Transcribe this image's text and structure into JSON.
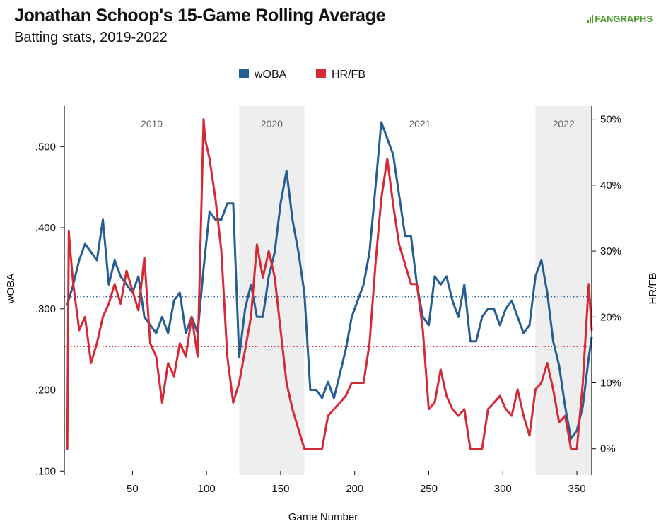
{
  "header": {
    "title": "Jonathan Schoop's 15-Game Rolling Average",
    "subtitle": "Batting stats, 2019-2022",
    "logo_text": "FANGRAPHS"
  },
  "colors": {
    "woba": "#265d93",
    "hrfb": "#d42a35",
    "season_shade": "#eeeeee",
    "logo": "#4a9a2c"
  },
  "chart_data": {
    "type": "line",
    "xlabel": "Game Number",
    "ylabel_left": "wOBA",
    "ylabel_right": "HR/FB",
    "xlim": [
      4,
      360
    ],
    "ylim_left": [
      0.095,
      0.55
    ],
    "ylim_right": [
      -0.04,
      0.52
    ],
    "x_ticks": [
      50,
      100,
      150,
      200,
      250,
      300,
      350
    ],
    "y_left_ticks": [
      ".100",
      ".200",
      ".300",
      ".400",
      ".500"
    ],
    "y_left_tick_values": [
      0.1,
      0.2,
      0.3,
      0.4,
      0.5
    ],
    "y_right_ticks": [
      "0%",
      "10%",
      "20%",
      "30%",
      "40%",
      "50%"
    ],
    "y_right_tick_values": [
      0,
      0.1,
      0.2,
      0.3,
      0.4,
      0.5
    ],
    "legend": [
      "wOBA",
      "HR/FB"
    ],
    "legend_position": "top-center",
    "grid": false,
    "seasons": [
      {
        "label": "2019",
        "start": 4,
        "end": 122,
        "shaded": false
      },
      {
        "label": "2020",
        "start": 122,
        "end": 166,
        "shaded": true
      },
      {
        "label": "2021",
        "start": 166,
        "end": 322,
        "shaded": false
      },
      {
        "label": "2022",
        "start": 322,
        "end": 360,
        "shaded": true
      }
    ],
    "reference_lines": [
      {
        "series": "wOBA",
        "value": 0.315,
        "style": "dotted"
      },
      {
        "series": "HR/FB",
        "value": 0.155,
        "style": "dotted"
      }
    ],
    "series": [
      {
        "name": "wOBA",
        "axis": "left",
        "x": [
          6,
          10,
          14,
          18,
          22,
          26,
          30,
          34,
          38,
          42,
          46,
          50,
          54,
          58,
          62,
          66,
          70,
          74,
          78,
          82,
          86,
          90,
          94,
          98,
          102,
          106,
          110,
          114,
          118,
          122,
          126,
          130,
          134,
          138,
          142,
          146,
          150,
          154,
          158,
          162,
          166,
          170,
          174,
          178,
          182,
          186,
          190,
          194,
          198,
          202,
          206,
          210,
          214,
          218,
          222,
          226,
          230,
          234,
          238,
          242,
          246,
          250,
          254,
          258,
          262,
          266,
          270,
          274,
          278,
          282,
          286,
          290,
          294,
          298,
          302,
          306,
          310,
          314,
          318,
          322,
          326,
          330,
          334,
          338,
          342,
          346,
          350,
          354,
          358,
          360
        ],
        "values": [
          0.305,
          0.33,
          0.36,
          0.38,
          0.37,
          0.36,
          0.41,
          0.33,
          0.36,
          0.34,
          0.33,
          0.32,
          0.34,
          0.29,
          0.28,
          0.27,
          0.29,
          0.27,
          0.31,
          0.32,
          0.27,
          0.29,
          0.27,
          0.35,
          0.42,
          0.41,
          0.41,
          0.43,
          0.43,
          0.24,
          0.3,
          0.33,
          0.29,
          0.29,
          0.34,
          0.37,
          0.43,
          0.47,
          0.41,
          0.37,
          0.32,
          0.2,
          0.2,
          0.19,
          0.21,
          0.19,
          0.22,
          0.25,
          0.29,
          0.31,
          0.33,
          0.37,
          0.45,
          0.53,
          0.51,
          0.49,
          0.44,
          0.39,
          0.39,
          0.33,
          0.29,
          0.28,
          0.34,
          0.33,
          0.34,
          0.31,
          0.29,
          0.33,
          0.26,
          0.26,
          0.29,
          0.3,
          0.3,
          0.28,
          0.3,
          0.31,
          0.29,
          0.27,
          0.28,
          0.34,
          0.36,
          0.32,
          0.26,
          0.23,
          0.18,
          0.14,
          0.15,
          0.18,
          0.24,
          0.265
        ]
      },
      {
        "name": "HR/FB",
        "axis": "right",
        "x": [
          6,
          7,
          8,
          10,
          14,
          18,
          22,
          26,
          30,
          34,
          38,
          42,
          46,
          50,
          54,
          58,
          62,
          66,
          70,
          74,
          78,
          82,
          86,
          90,
          94,
          98,
          99,
          102,
          106,
          110,
          114,
          118,
          122,
          126,
          130,
          134,
          138,
          142,
          146,
          150,
          154,
          158,
          162,
          166,
          170,
          174,
          178,
          182,
          186,
          190,
          194,
          198,
          202,
          206,
          210,
          214,
          218,
          222,
          226,
          230,
          234,
          238,
          242,
          246,
          250,
          254,
          258,
          262,
          266,
          270,
          274,
          278,
          282,
          286,
          290,
          294,
          298,
          302,
          306,
          310,
          314,
          318,
          322,
          326,
          330,
          334,
          338,
          342,
          346,
          350,
          354,
          358,
          360
        ],
        "values": [
          0.0,
          0.33,
          0.3,
          0.25,
          0.18,
          0.2,
          0.13,
          0.16,
          0.2,
          0.22,
          0.25,
          0.22,
          0.27,
          0.24,
          0.21,
          0.29,
          0.16,
          0.14,
          0.07,
          0.13,
          0.11,
          0.16,
          0.14,
          0.2,
          0.14,
          0.5,
          0.47,
          0.44,
          0.38,
          0.3,
          0.14,
          0.07,
          0.1,
          0.15,
          0.2,
          0.31,
          0.26,
          0.3,
          0.26,
          0.18,
          0.1,
          0.06,
          0.03,
          0.0,
          0.0,
          0.0,
          0.0,
          0.05,
          0.06,
          0.07,
          0.08,
          0.1,
          0.1,
          0.1,
          0.16,
          0.28,
          0.38,
          0.44,
          0.37,
          0.31,
          0.28,
          0.25,
          0.25,
          0.18,
          0.06,
          0.07,
          0.12,
          0.08,
          0.06,
          0.05,
          0.06,
          0.0,
          0.0,
          0.0,
          0.06,
          0.07,
          0.08,
          0.06,
          0.05,
          0.09,
          0.05,
          0.02,
          0.09,
          0.1,
          0.13,
          0.09,
          0.04,
          0.05,
          0.0,
          0.0,
          0.1,
          0.25,
          0.18
        ]
      }
    ]
  }
}
